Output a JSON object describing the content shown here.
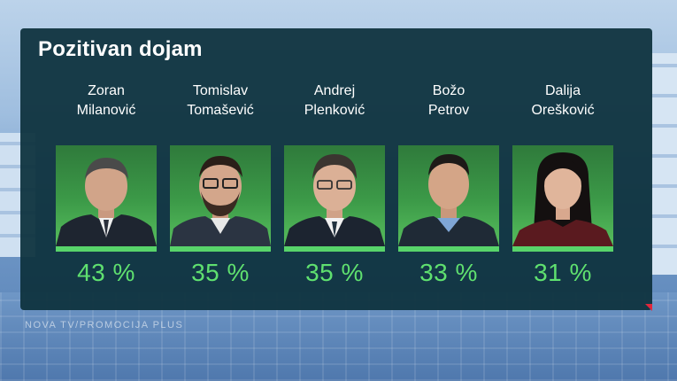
{
  "chart_data": {
    "type": "bar",
    "title": "Pozitivan dojam",
    "unit": "%",
    "categories": [
      [
        "Zoran",
        "Milanović"
      ],
      [
        "Tomislav",
        "Tomašević"
      ],
      [
        "Andrej",
        "Plenković"
      ],
      [
        "Božo",
        "Petrov"
      ],
      [
        "Dalija",
        "Orešković"
      ]
    ],
    "values": [
      43,
      35,
      35,
      33,
      31
    ],
    "value_labels": [
      "43 %",
      "35 %",
      "35 %",
      "33 %",
      "31 %"
    ]
  },
  "source": "NOVA TV/PROMOCIJA PLUS",
  "colors": {
    "panel": "#0e323e",
    "accent": "#5fe06f",
    "photo_bg": "#3c9a48"
  }
}
